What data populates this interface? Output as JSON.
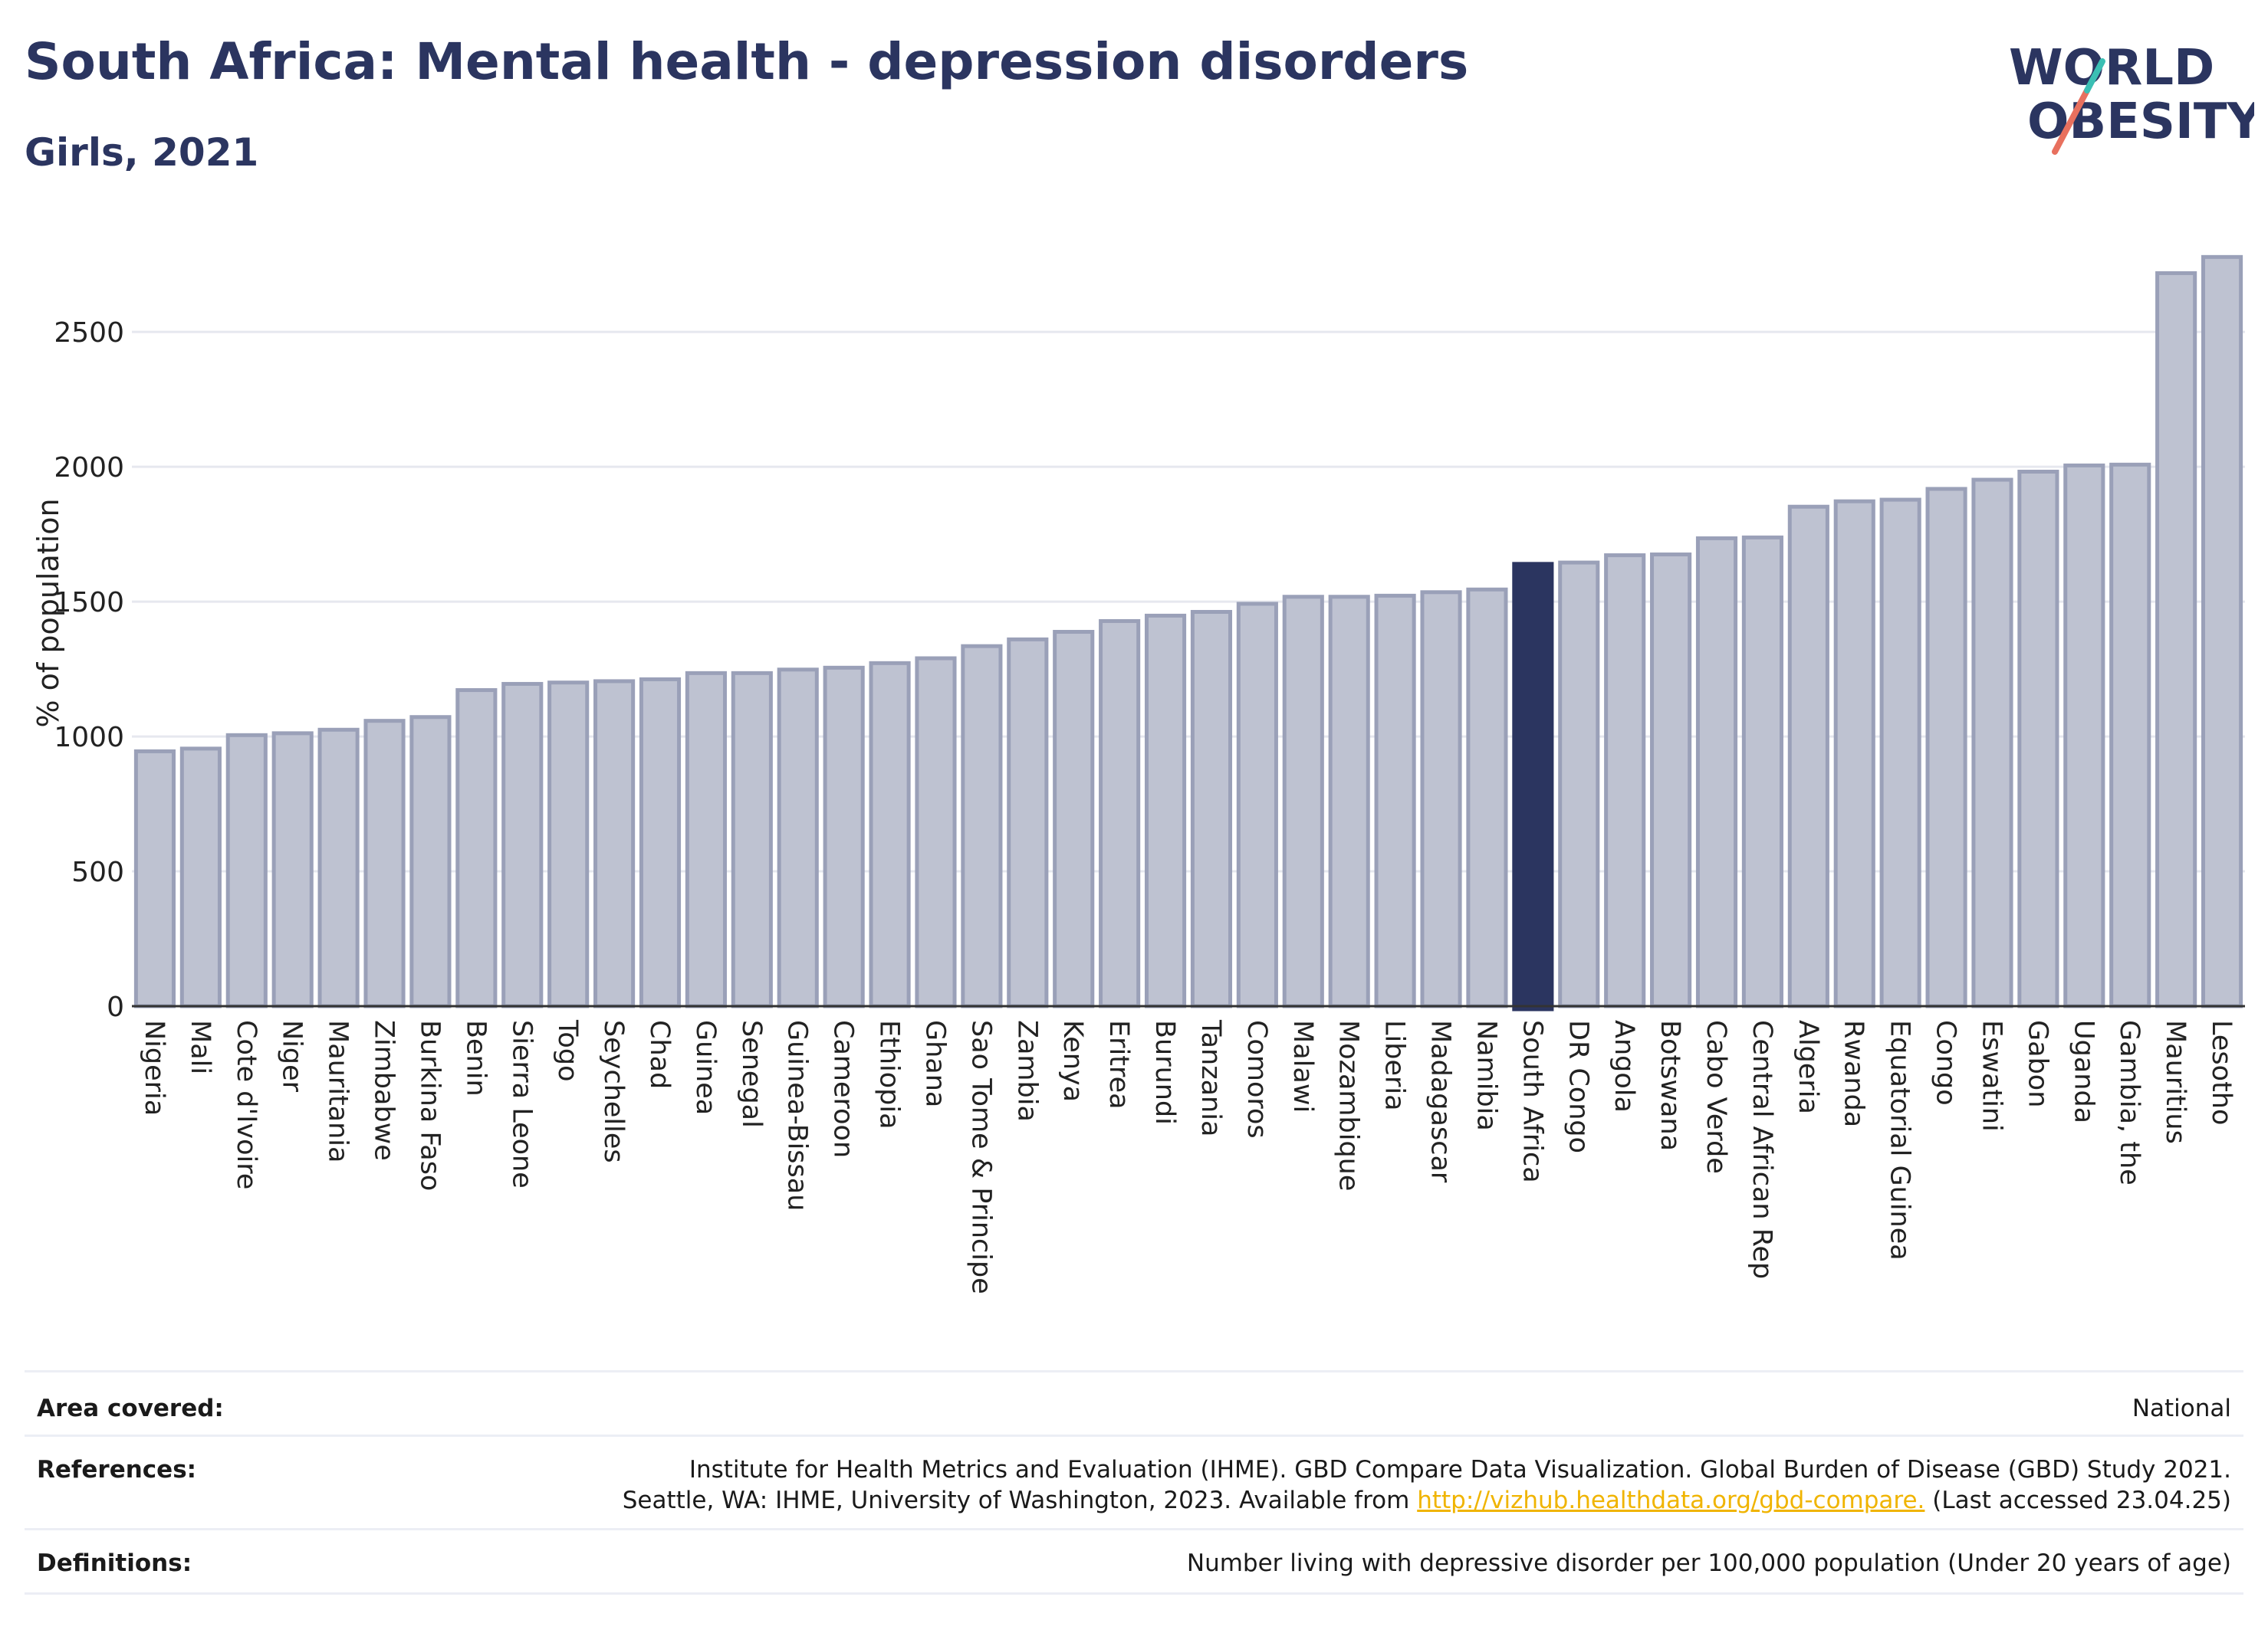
{
  "header": {
    "title": "South Africa: Mental health - depression disorders",
    "subtitle": "Girls, 2021",
    "logo_text": "WORLD OBESITY"
  },
  "colors": {
    "title": "#2b3560",
    "bar": "#bec2d1",
    "bar_stroke": "#9aa0b8",
    "highlight": "#2b3560",
    "logo_slash_teal": "#3bbfb4",
    "logo_slash_coral": "#e8705e",
    "link": "#f0b400"
  },
  "chart_data": {
    "type": "bar",
    "ylabel": "% of population",
    "ylim": [
      0,
      2850
    ],
    "yticks": [
      0,
      500,
      1000,
      1500,
      2000,
      2500
    ],
    "grid": true,
    "highlight": "South Africa",
    "categories": [
      "Nigeria",
      "Mali",
      "Cote d'Ivoire",
      "Niger",
      "Mauritania",
      "Zimbabwe",
      "Burkina Faso",
      "Benin",
      "Sierra Leone",
      "Togo",
      "Seychelles",
      "Chad",
      "Guinea",
      "Senegal",
      "Guinea-Bissau",
      "Cameroon",
      "Ethiopia",
      "Ghana",
      "Sao Tome & Principe",
      "Zambia",
      "Kenya",
      "Eritrea",
      "Burundi",
      "Tanzania",
      "Comoros",
      "Malawi",
      "Mozambique",
      "Liberia",
      "Madagascar",
      "Namibia",
      "South Africa",
      "DR Congo",
      "Angola",
      "Botswana",
      "Cabo Verde",
      "Central African Rep",
      "Algeria",
      "Rwanda",
      "Equatorial Guinea",
      "Congo",
      "Eswatini",
      "Gabon",
      "Uganda",
      "Gambia, the",
      "Mauritius",
      "Lesotho"
    ],
    "values": [
      945,
      955,
      1005,
      1012,
      1025,
      1058,
      1072,
      1172,
      1195,
      1200,
      1205,
      1212,
      1235,
      1235,
      1248,
      1255,
      1272,
      1290,
      1335,
      1360,
      1388,
      1428,
      1448,
      1462,
      1492,
      1518,
      1518,
      1522,
      1535,
      1545,
      1640,
      1645,
      1672,
      1675,
      1735,
      1738,
      1852,
      1872,
      1878,
      1918,
      1952,
      1982,
      2005,
      2008,
      2718,
      2778
    ]
  },
  "footer": {
    "area_label": "Area covered:",
    "area_value": "National",
    "references_label": "References:",
    "references_line1": "Institute for Health Metrics and Evaluation (IHME). GBD Compare Data Visualization. Global Burden of Disease (GBD) Study 2021.",
    "references_line2_prefix": "Seattle, WA: IHME, University of Washington, 2023. Available from",
    "references_link": "http://vizhub.healthdata.org/gbd-compare.",
    "references_line2_suffix": "(Last accessed 23.04.25)",
    "definitions_label": "Definitions:",
    "definitions_value": "Number living with depressive disorder per 100,000 population (Under 20 years of age)"
  }
}
